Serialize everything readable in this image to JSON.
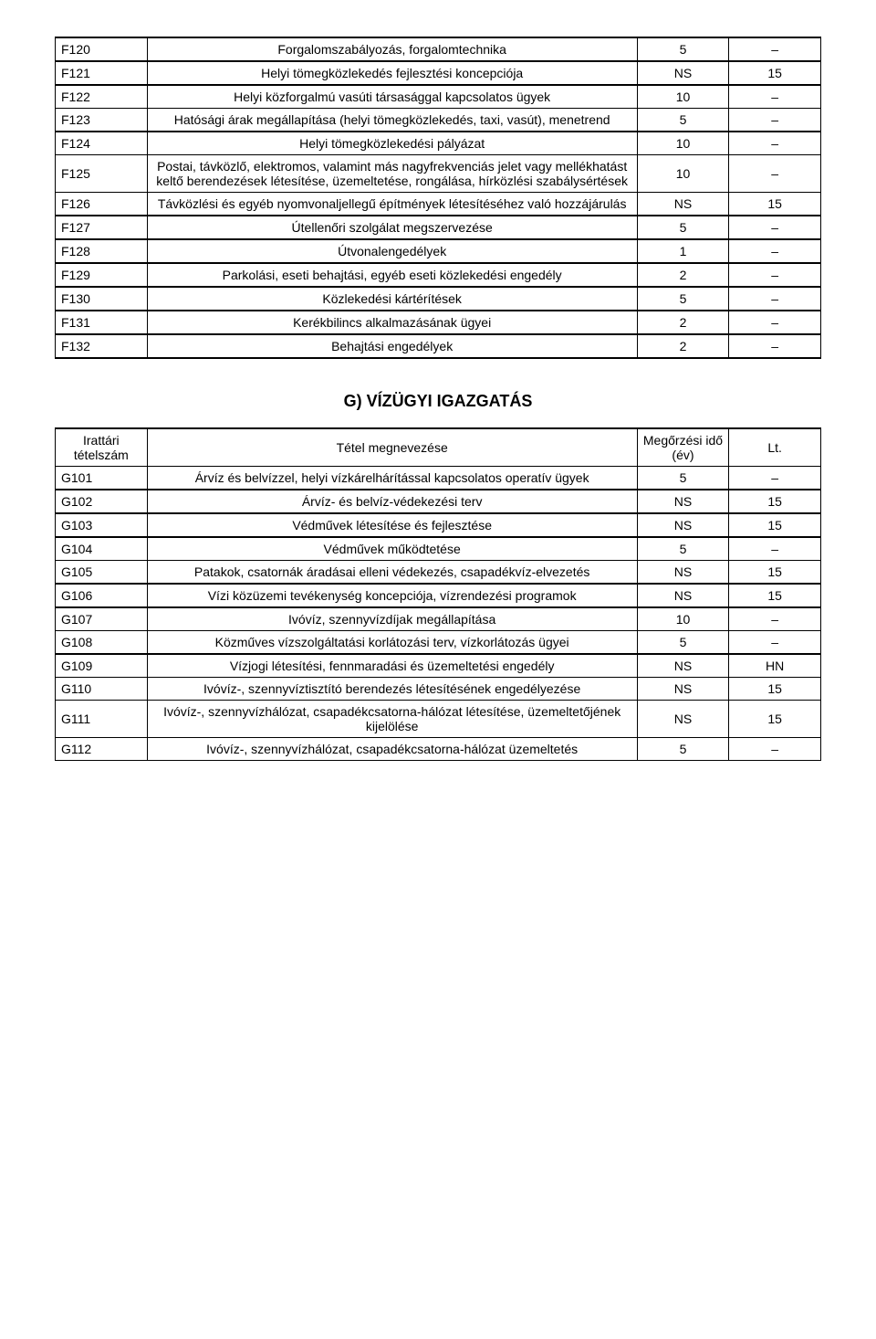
{
  "tableF": {
    "rows": [
      {
        "code": "F120",
        "desc": "Forgalomszabályozás, forgalomtechnika",
        "v1": "5",
        "v2": "–",
        "thickTop": true,
        "thickBottom": true
      },
      {
        "code": "F121",
        "desc": "Helyi tömegközlekedés fejlesztési koncepciója",
        "v1": "NS",
        "v2": "15",
        "thickBottom": true
      },
      {
        "code": "F122",
        "desc": "Helyi közforgalmú vasúti társasággal kapcsolatos ügyek",
        "v1": "10",
        "v2": "–"
      },
      {
        "code": "F123",
        "desc": "Hatósági árak megállapítása (helyi tömegközlekedés, taxi, vasút), menetrend",
        "v1": "5",
        "v2": "–",
        "thickBottom": true
      },
      {
        "code": "F124",
        "desc": "Helyi tömegközlekedési pályázat",
        "v1": "10",
        "v2": "–"
      },
      {
        "code": "F125",
        "desc": "Postai, távközlő, elektromos, valamint más nagyfrekvenciás jelet vagy mellékhatást keltő berendezések létesítése, üzemeltetése, rongálása, hírközlési szabálysértések",
        "v1": "10",
        "v2": "–"
      },
      {
        "code": "F126",
        "desc": "Távközlési és egyéb nyomvonaljellegű építmények létesítéséhez való hozzájárulás",
        "v1": "NS",
        "v2": "15",
        "thickBottom": true
      },
      {
        "code": "F127",
        "desc": "Útellenőri szolgálat megszervezése",
        "v1": "5",
        "v2": "–",
        "thickBottom": true
      },
      {
        "code": "F128",
        "desc": "Útvonalengedélyek",
        "v1": "1",
        "v2": "–",
        "thickBottom": true
      },
      {
        "code": "F129",
        "desc": "Parkolási, eseti behajtási, egyéb eseti közlekedési engedély",
        "v1": "2",
        "v2": "–",
        "thickBottom": true
      },
      {
        "code": "F130",
        "desc": "Közlekedési kártérítések",
        "v1": "5",
        "v2": "–",
        "thickBottom": true
      },
      {
        "code": "F131",
        "desc": "Kerékbilincs alkalmazásának ügyei",
        "v1": "2",
        "v2": "–",
        "thickBottom": true
      },
      {
        "code": "F132",
        "desc": "Behajtási engedélyek",
        "v1": "2",
        "v2": "–",
        "thickBottom": true
      }
    ]
  },
  "sectionG": {
    "title": "G) VÍZÜGYI IGAZGATÁS",
    "header": {
      "col1": "Irattári tételszám",
      "col2": "Tétel megnevezése",
      "col3": "Megőrzési idő (év)",
      "col4": "Lt."
    },
    "rows": [
      {
        "code": "G101",
        "desc": "Árvíz és belvízzel, helyi vízkárelhárítással kapcsolatos operatív ügyek",
        "v1": "5",
        "v2": "–",
        "thickBottom": true
      },
      {
        "code": "G102",
        "desc": "Árvíz- és belvíz-védekezési terv",
        "v1": "NS",
        "v2": "15",
        "thickBottom": true
      },
      {
        "code": "G103",
        "desc": "Védművek létesítése és fejlesztése",
        "v1": "NS",
        "v2": "15",
        "thickBottom": true
      },
      {
        "code": "G104",
        "desc": "Védművek működtetése",
        "v1": "5",
        "v2": "–"
      },
      {
        "code": "G105",
        "desc": "Patakok, csatornák áradásai elleni védekezés, csapadékvíz-elvezetés",
        "v1": "NS",
        "v2": "15",
        "thickBottom": true
      },
      {
        "code": "G106",
        "desc": "Vízi közüzemi tevékenység koncepciója, vízrendezési programok",
        "v1": "NS",
        "v2": "15",
        "thickBottom": true
      },
      {
        "code": "G107",
        "desc": "Ivóvíz, szennyvízdíjak megállapítása",
        "v1": "10",
        "v2": "–"
      },
      {
        "code": "G108",
        "desc": "Közműves vízszolgáltatási korlátozási terv, vízkorlátozás ügyei",
        "v1": "5",
        "v2": "–",
        "thickBottom": true
      },
      {
        "code": "G109",
        "desc": "Vízjogi létesítési, fennmaradási és üzemeltetési engedély",
        "v1": "NS",
        "v2": "HN"
      },
      {
        "code": "G110",
        "desc": "Ivóvíz-, szennyvíztisztító berendezés létesítésének engedélyezése",
        "v1": "NS",
        "v2": "15"
      },
      {
        "code": "G111",
        "desc": "Ivóvíz-, szennyvízhálózat, csapadékcsatorna-hálózat létesítése, üzemeltetőjének kijelölése",
        "v1": "NS",
        "v2": "15"
      },
      {
        "code": "G112",
        "desc": "Ivóvíz-, szennyvízhálózat, csapadékcsatorna-hálózat üzemeltetés",
        "v1": "5",
        "v2": "–"
      }
    ]
  }
}
